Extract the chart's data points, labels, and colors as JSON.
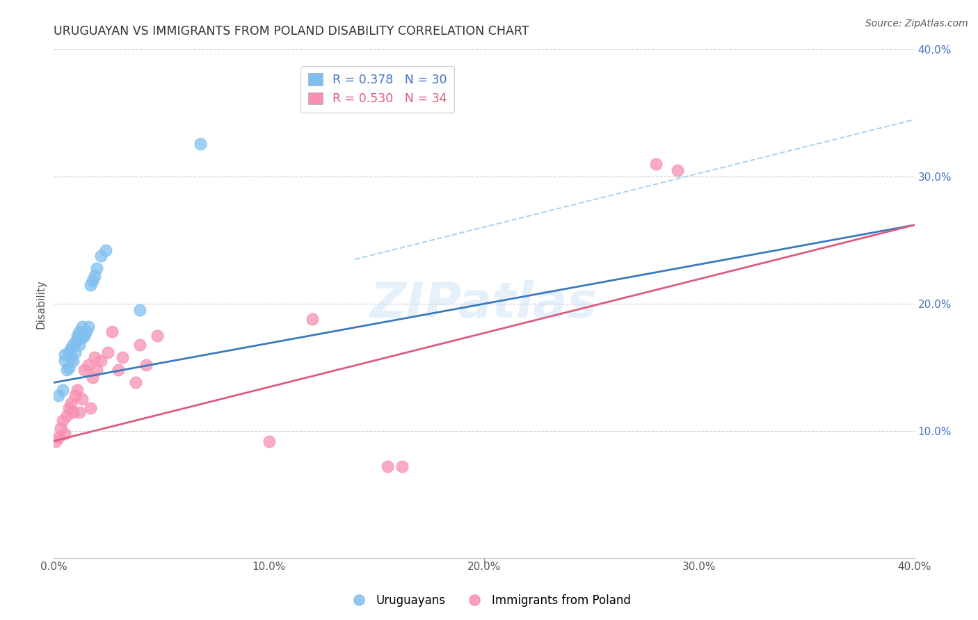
{
  "title": "URUGUAYAN VS IMMIGRANTS FROM POLAND DISABILITY CORRELATION CHART",
  "source": "Source: ZipAtlas.com",
  "ylabel": "Disability",
  "xlim": [
    0.0,
    0.4
  ],
  "ylim": [
    0.0,
    0.4
  ],
  "xtick_vals": [
    0.0,
    0.1,
    0.2,
    0.3,
    0.4
  ],
  "xtick_labels": [
    "0.0%",
    "10.0%",
    "20.0%",
    "30.0%",
    "40.0%"
  ],
  "right_ytick_vals": [
    0.1,
    0.2,
    0.3,
    0.4
  ],
  "right_ytick_labels": [
    "10.0%",
    "20.0%",
    "30.0%",
    "40.0%"
  ],
  "blue_scatter_color": "#7fbfef",
  "pink_scatter_color": "#f78fb0",
  "blue_line_color": "#3a7abf",
  "pink_line_color": "#e05a7a",
  "blue_dashed_color": "#aad4f0",
  "right_tick_color": "#4472c4",
  "legend_R1": "R = 0.378",
  "legend_N1": "N = 30",
  "legend_R2": "R = 0.530",
  "legend_N2": "N = 34",
  "watermark_text": "ZIPatlas",
  "uruguayan_x": [
    0.002,
    0.004,
    0.005,
    0.005,
    0.006,
    0.007,
    0.007,
    0.008,
    0.008,
    0.009,
    0.009,
    0.01,
    0.01,
    0.011,
    0.011,
    0.012,
    0.012,
    0.013,
    0.013,
    0.014,
    0.015,
    0.016,
    0.017,
    0.018,
    0.019,
    0.02,
    0.022,
    0.024,
    0.04,
    0.068
  ],
  "uruguayan_y": [
    0.128,
    0.132,
    0.155,
    0.16,
    0.148,
    0.15,
    0.162,
    0.158,
    0.165,
    0.155,
    0.168,
    0.162,
    0.17,
    0.172,
    0.175,
    0.168,
    0.178,
    0.173,
    0.182,
    0.175,
    0.178,
    0.182,
    0.215,
    0.218,
    0.222,
    0.228,
    0.238,
    0.242,
    0.195,
    0.326
  ],
  "poland_x": [
    0.001,
    0.002,
    0.003,
    0.004,
    0.005,
    0.006,
    0.007,
    0.008,
    0.009,
    0.01,
    0.011,
    0.012,
    0.013,
    0.014,
    0.016,
    0.017,
    0.018,
    0.019,
    0.02,
    0.022,
    0.025,
    0.027,
    0.03,
    0.032,
    0.038,
    0.04,
    0.043,
    0.048,
    0.1,
    0.12,
    0.155,
    0.162,
    0.28,
    0.29
  ],
  "poland_y": [
    0.092,
    0.095,
    0.102,
    0.108,
    0.098,
    0.112,
    0.118,
    0.122,
    0.115,
    0.128,
    0.132,
    0.115,
    0.125,
    0.148,
    0.152,
    0.118,
    0.142,
    0.158,
    0.148,
    0.155,
    0.162,
    0.178,
    0.148,
    0.158,
    0.138,
    0.168,
    0.152,
    0.175,
    0.092,
    0.188,
    0.072,
    0.072,
    0.31,
    0.305
  ],
  "blue_line_x": [
    0.0,
    0.4
  ],
  "blue_line_y": [
    0.138,
    0.262
  ],
  "pink_line_x": [
    0.0,
    0.4
  ],
  "pink_line_y": [
    0.092,
    0.262
  ],
  "dashed_line_x": [
    0.14,
    0.4
  ],
  "dashed_line_y": [
    0.235,
    0.345
  ]
}
